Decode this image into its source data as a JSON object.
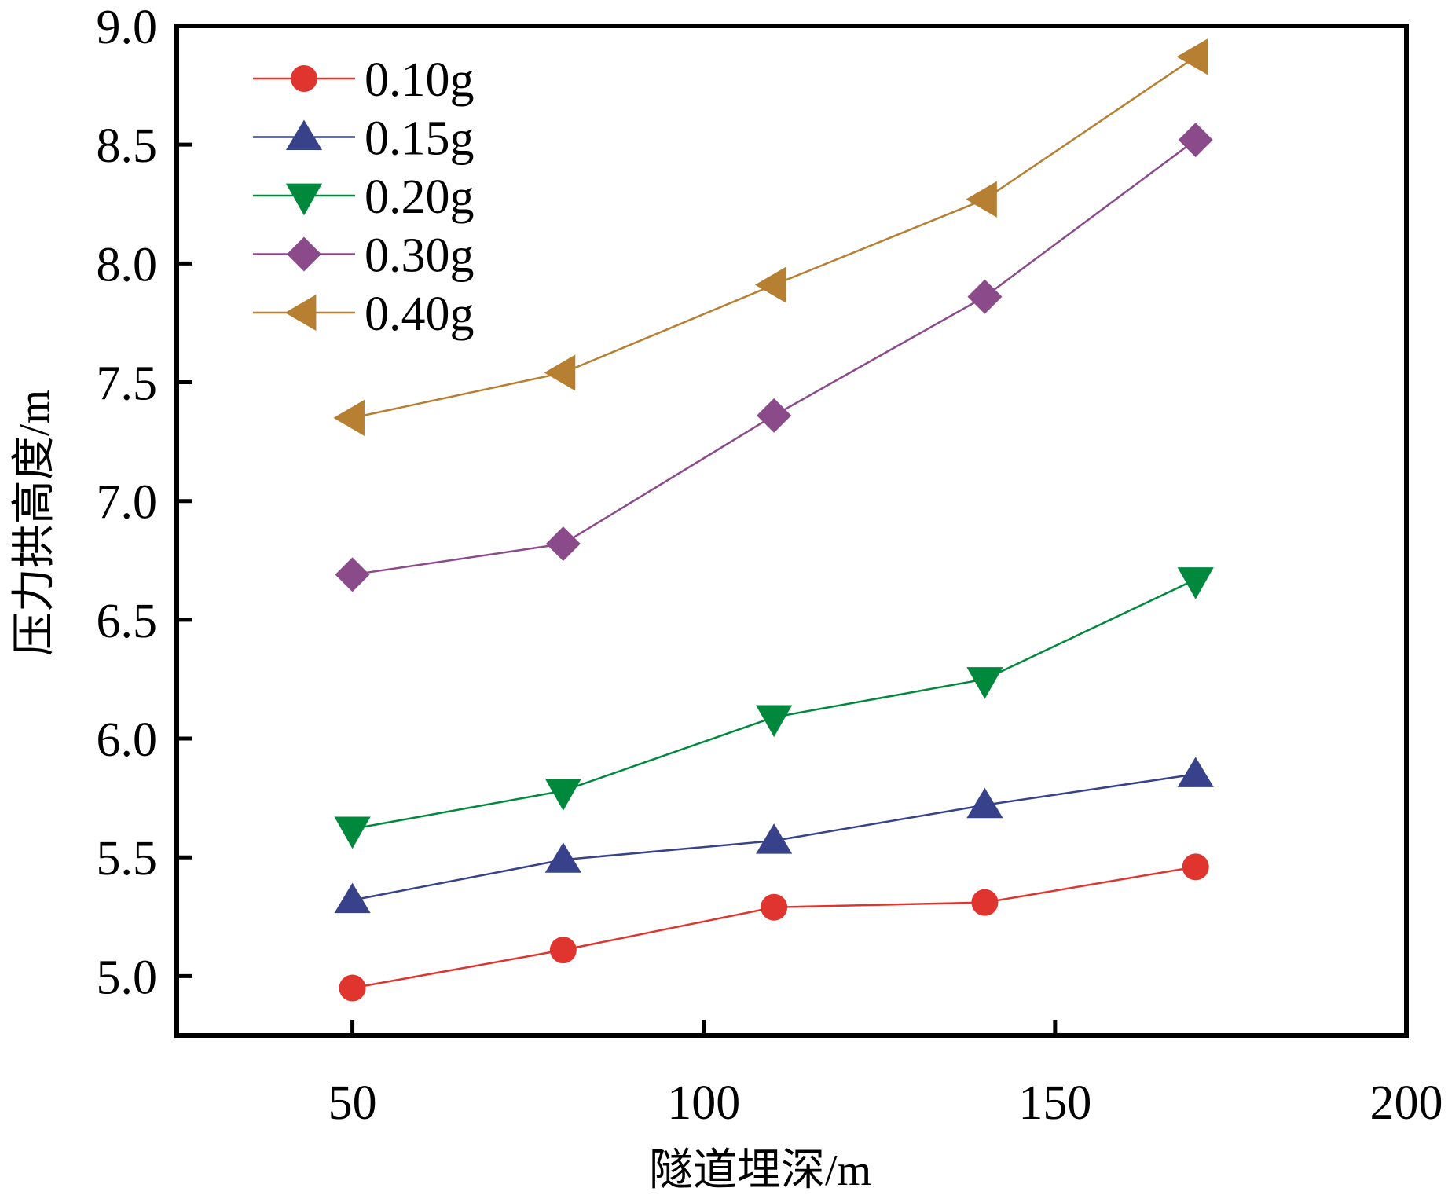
{
  "chart_data": {
    "type": "line",
    "title": "",
    "xlabel": "隧道埋深/m",
    "ylabel": "压力拱高度/m",
    "xlim": [
      25,
      200
    ],
    "ylim": [
      4.75,
      9.0
    ],
    "xticks": [
      50,
      100,
      150,
      200
    ],
    "xtick_labels": [
      "50",
      "100",
      "150",
      "200"
    ],
    "yticks": [
      5.0,
      5.5,
      6.0,
      6.5,
      7.0,
      7.5,
      8.0,
      8.5,
      9.0
    ],
    "ytick_labels": [
      "5.0",
      "5.5",
      "6.0",
      "6.5",
      "7.0",
      "7.5",
      "8.0",
      "8.5",
      "9.0"
    ],
    "grid": false,
    "legend_position": "top-left",
    "x": [
      50,
      80,
      110,
      140,
      170
    ],
    "series": [
      {
        "name": "0.10g",
        "marker": "circle",
        "color": "#e0352f",
        "values": [
          4.95,
          5.11,
          5.29,
          5.31,
          5.46
        ]
      },
      {
        "name": "0.15g",
        "marker": "triangle-up",
        "color": "#37428a",
        "values": [
          5.32,
          5.49,
          5.57,
          5.72,
          5.85
        ]
      },
      {
        "name": "0.20g",
        "marker": "triangle-down",
        "color": "#00893d",
        "values": [
          5.62,
          5.78,
          6.09,
          6.25,
          6.67
        ]
      },
      {
        "name": "0.30g",
        "marker": "diamond",
        "color": "#8b4b8b",
        "values": [
          6.69,
          6.82,
          7.36,
          7.86,
          8.52
        ]
      },
      {
        "name": "0.40g",
        "marker": "triangle-left",
        "color": "#b67f32",
        "values": [
          7.35,
          7.54,
          7.91,
          8.27,
          8.87
        ]
      }
    ]
  }
}
